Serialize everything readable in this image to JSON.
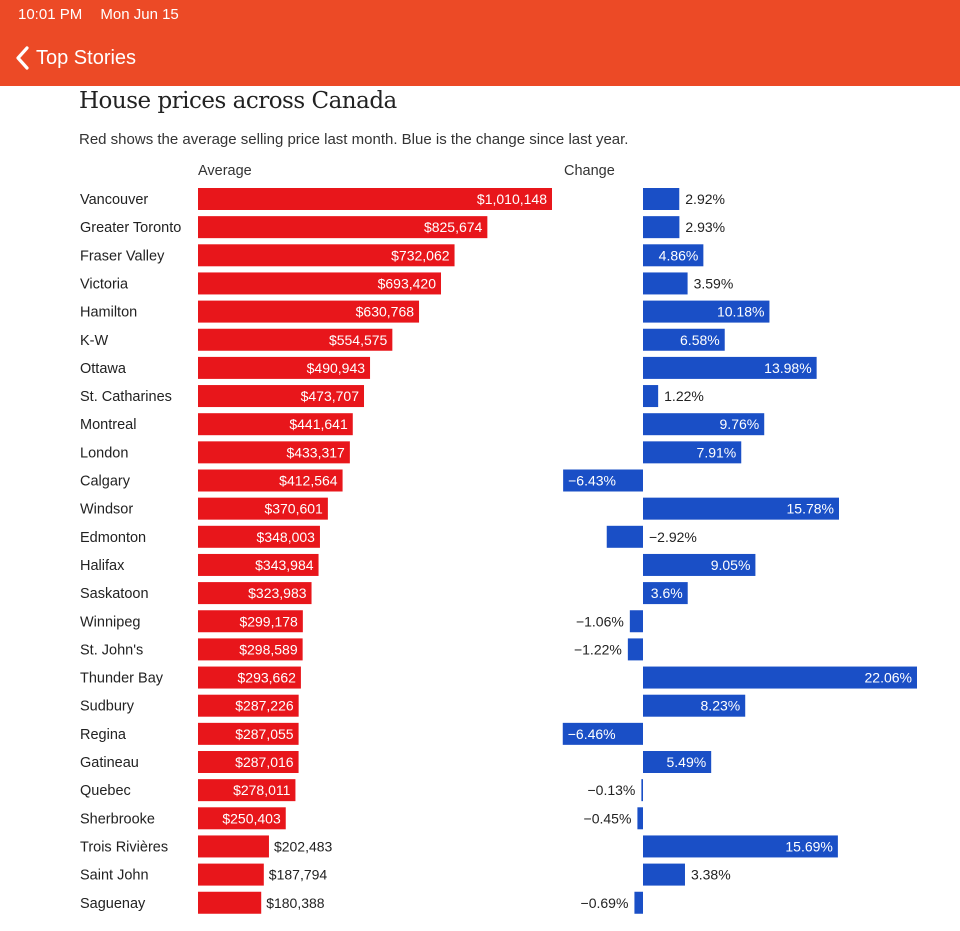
{
  "status_bar": {
    "time": "10:01 PM",
    "date": "Mon Jun 15"
  },
  "nav": {
    "back_label": "Top Stories",
    "back_icon": "chevron-left-icon"
  },
  "chart_data": {
    "type": "bar",
    "title": "House prices across Canada",
    "subtitle": "Red shows the average selling price last month. Blue is the change since last year.",
    "colors": {
      "average": "#e8161b",
      "change": "#1a4fc6",
      "header": "#ec4a26"
    },
    "categories": [
      "Vancouver",
      "Greater Toronto",
      "Fraser Valley",
      "Victoria",
      "Hamilton",
      "K-W",
      "Ottawa",
      "St. Catharines",
      "Montreal",
      "London",
      "Calgary",
      "Windsor",
      "Edmonton",
      "Halifax",
      "Saskatoon",
      "Winnipeg",
      "St. John's",
      "Thunder Bay",
      "Sudbury",
      "Regina",
      "Gatineau",
      "Quebec",
      "Sherbrooke",
      "Trois Rivières",
      "Saint John",
      "Saguenay"
    ],
    "series": [
      {
        "name": "Average",
        "values": [
          1010148,
          825674,
          732062,
          693420,
          630768,
          554575,
          490943,
          473707,
          441641,
          433317,
          412564,
          370601,
          348003,
          343984,
          323983,
          299178,
          298589,
          293662,
          287226,
          287055,
          287016,
          278011,
          250403,
          202483,
          187794,
          180388
        ],
        "labels": [
          "$1,010,148",
          "$825,674",
          "$732,062",
          "$693,420",
          "$630,768",
          "$554,575",
          "$490,943",
          "$473,707",
          "$441,641",
          "$433,317",
          "$412,564",
          "$370,601",
          "$348,003",
          "$343,984",
          "$323,983",
          "$299,178",
          "$298,589",
          "$293,662",
          "$287,226",
          "$287,055",
          "$287,016",
          "$278,011",
          "$250,403",
          "$202,483",
          "$187,794",
          "$180,388"
        ]
      },
      {
        "name": "Change",
        "values": [
          2.92,
          2.93,
          4.86,
          3.59,
          10.18,
          6.58,
          13.98,
          1.22,
          9.76,
          7.91,
          -6.43,
          15.78,
          -2.92,
          9.05,
          3.6,
          -1.06,
          -1.22,
          22.06,
          8.23,
          -6.46,
          5.49,
          -0.13,
          -0.45,
          15.69,
          3.38,
          -0.69
        ],
        "labels": [
          "2.92%",
          "2.93%",
          "4.86%",
          "3.59%",
          "10.18%",
          "6.58%",
          "13.98%",
          "1.22%",
          "9.76%",
          "7.91%",
          "−6.43%",
          "15.78%",
          "−2.92%",
          "9.05%",
          "3.6%",
          "−1.06%",
          "−1.22%",
          "22.06%",
          "8.23%",
          "−6.46%",
          "5.49%",
          "−0.13%",
          "−0.45%",
          "15.69%",
          "3.38%",
          "−0.69%"
        ]
      }
    ]
  }
}
